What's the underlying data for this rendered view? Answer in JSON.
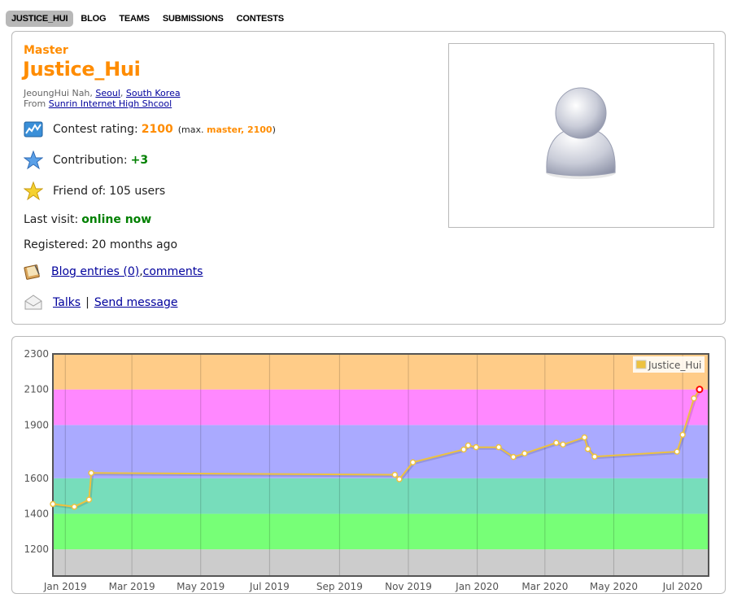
{
  "nav": {
    "items": [
      {
        "label": "JUSTICE_HUI",
        "active": true
      },
      {
        "label": "BLOG",
        "active": false
      },
      {
        "label": "TEAMS",
        "active": false
      },
      {
        "label": "SUBMISSIONS",
        "active": false
      },
      {
        "label": "CONTESTS",
        "active": false
      }
    ]
  },
  "profile": {
    "rank": "Master",
    "handle": "Justice_Hui",
    "name": "JeoungHui Nah",
    "sep": ", ",
    "city": "Seoul",
    "country": "South Korea",
    "from_label": "From ",
    "organization": "Sunrin Internet High Shcool",
    "rating_label": "Contest rating: ",
    "rating": "2100",
    "max_open": "(max. ",
    "max_rank": "master, 2100",
    "max_close": ")",
    "contribution_label": "Contribution: ",
    "contribution": "+3",
    "friend_label": "Friend of: ",
    "friend_value": "105 users",
    "last_visit_label": "Last visit: ",
    "last_visit": "online now",
    "registered_label": "Registered: ",
    "registered": "20 months ago",
    "blog_link": "Blog entries (0)",
    "comments_link": "comments",
    "talks_link": "Talks",
    "pipe": "|",
    "send_message_link": "Send message",
    "accent_color": "#ff8c00",
    "online_color": "#008000",
    "link_color": "#00009c"
  },
  "chart_data": {
    "type": "line",
    "legend": [
      "Justice_Hui"
    ],
    "legend_position": "top-right",
    "ylim": [
      1050,
      2300
    ],
    "yticks": [
      1200,
      1400,
      1600,
      1900,
      2100,
      2300
    ],
    "xlim": [
      "2018-12-21",
      "2020-07-24"
    ],
    "xticks": [
      "Jan 2019",
      "Mar 2019",
      "May 2019",
      "Jul 2019",
      "Sep 2019",
      "Nov 2019",
      "Jan 2020",
      "Mar 2020",
      "May 2020",
      "Jul 2020"
    ],
    "bands": [
      {
        "from": 1050,
        "to": 1200,
        "color": "#cccccc"
      },
      {
        "from": 1200,
        "to": 1400,
        "color": "#77ff77"
      },
      {
        "from": 1400,
        "to": 1600,
        "color": "#77ddbb"
      },
      {
        "from": 1600,
        "to": 1900,
        "color": "#aaaaff"
      },
      {
        "from": 1900,
        "to": 2100,
        "color": "#ff88ff"
      },
      {
        "from": 2100,
        "to": 2300,
        "color": "#ffcc88"
      }
    ],
    "series": [
      {
        "name": "Justice_Hui",
        "color": "#edc240",
        "x": [
          "2018-12-21",
          "2019-01-09",
          "2019-01-22",
          "2019-01-24",
          "2019-10-20",
          "2019-10-24",
          "2019-11-05",
          "2019-12-20",
          "2019-12-24",
          "2019-12-31",
          "2020-01-20",
          "2020-02-02",
          "2020-02-12",
          "2020-03-11",
          "2020-03-17",
          "2020-04-05",
          "2020-04-08",
          "2020-04-14",
          "2020-06-26",
          "2020-07-01",
          "2020-07-11",
          "2020-07-16"
        ],
        "y": [
          1455,
          1440,
          1480,
          1630,
          1620,
          1595,
          1690,
          1762,
          1785,
          1775,
          1775,
          1720,
          1740,
          1800,
          1790,
          1830,
          1765,
          1722,
          1750,
          1845,
          2050,
          2100
        ]
      }
    ]
  }
}
